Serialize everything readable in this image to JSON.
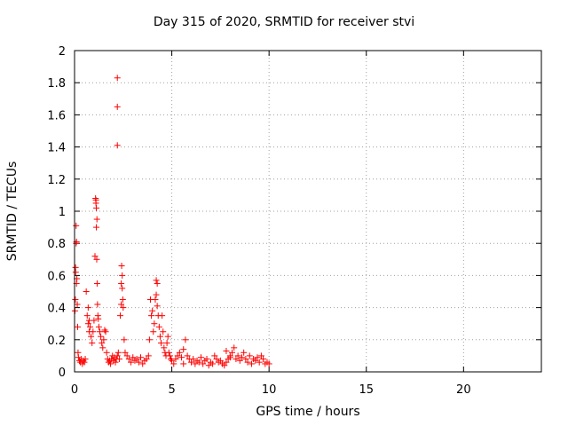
{
  "chart_data": {
    "type": "scatter",
    "title": "Day 315 of 2020, SRMTID for receiver stvi",
    "xlabel": "GPS time / hours",
    "ylabel": "SRMTID / TECUs",
    "xlim": [
      0,
      24
    ],
    "ylim": [
      0,
      2
    ],
    "xticks": [
      0,
      5,
      10,
      15,
      20
    ],
    "yticks": [
      0,
      0.2,
      0.4,
      0.6,
      0.8,
      1,
      1.2,
      1.4,
      1.6,
      1.8,
      2
    ],
    "grid": true,
    "marker": "+",
    "color": "#ff0000",
    "series": [
      {
        "name": "SRMTID",
        "x": [
          0.02,
          0.04,
          0.06,
          0.08,
          0.1,
          0.12,
          0.14,
          0.16,
          0.18,
          0.2,
          0.25,
          0.3,
          0.35,
          0.4,
          0.45,
          0.5,
          0.55,
          0.6,
          0.65,
          0.7,
          0.75,
          0.8,
          0.85,
          0.9,
          0.95,
          1.0,
          1.05,
          1.08,
          1.1,
          1.12,
          1.14,
          1.16,
          1.18,
          1.2,
          1.22,
          1.25,
          1.3,
          1.35,
          1.4,
          1.45,
          1.5,
          1.55,
          1.6,
          1.65,
          1.7,
          1.75,
          1.8,
          1.85,
          1.9,
          1.95,
          2.0,
          2.05,
          2.1,
          2.15,
          2.2,
          2.25,
          2.3,
          2.35,
          2.4,
          2.42,
          2.45,
          2.48,
          2.5,
          2.55,
          2.6,
          2.7,
          2.8,
          2.9,
          3.0,
          3.1,
          3.2,
          3.3,
          3.4,
          3.5,
          3.6,
          3.7,
          3.8,
          3.85,
          3.9,
          3.95,
          4.0,
          4.05,
          4.1,
          4.15,
          4.2,
          4.25,
          4.3,
          4.35,
          4.4,
          4.45,
          4.5,
          4.55,
          4.6,
          4.65,
          4.7,
          4.75,
          4.8,
          4.85,
          4.9,
          4.95,
          5.0,
          5.1,
          5.2,
          5.3,
          5.4,
          5.5,
          5.6,
          5.7,
          5.8,
          5.9,
          6.0,
          6.1,
          6.2,
          6.3,
          6.4,
          6.5,
          6.6,
          6.7,
          6.8,
          6.9,
          7.0,
          7.1,
          7.2,
          7.3,
          7.4,
          7.5,
          7.6,
          7.7,
          7.8,
          7.9,
          8.0,
          8.1,
          8.2,
          8.3,
          8.4,
          8.5,
          8.6,
          8.7,
          8.8,
          8.9,
          9.0,
          9.1,
          9.2,
          9.3,
          9.4,
          9.5,
          9.6,
          9.7,
          9.8,
          9.9,
          10.0,
          2.2,
          2.2,
          2.2,
          0.1,
          0.05,
          0.08,
          1.1,
          1.12,
          1.15,
          2.4,
          2.45,
          4.2,
          4.25,
          0.7,
          0.75,
          5.6,
          7.8,
          8.0
        ],
        "y": [
          0.38,
          0.45,
          0.62,
          0.91,
          0.81,
          0.58,
          0.42,
          0.28,
          0.12,
          0.09,
          0.07,
          0.06,
          0.08,
          0.05,
          0.07,
          0.06,
          0.08,
          0.5,
          0.35,
          0.3,
          0.32,
          0.28,
          0.22,
          0.18,
          0.25,
          0.32,
          0.72,
          1.08,
          1.05,
          0.9,
          0.7,
          0.55,
          0.42,
          0.35,
          0.33,
          0.28,
          0.25,
          0.22,
          0.18,
          0.15,
          0.2,
          0.26,
          0.25,
          0.12,
          0.08,
          0.06,
          0.07,
          0.05,
          0.08,
          0.1,
          0.07,
          0.09,
          0.06,
          0.08,
          0.1,
          0.12,
          0.08,
          0.35,
          0.55,
          0.66,
          0.6,
          0.45,
          0.4,
          0.2,
          0.12,
          0.1,
          0.08,
          0.06,
          0.09,
          0.07,
          0.08,
          0.06,
          0.09,
          0.05,
          0.07,
          0.08,
          0.1,
          0.2,
          0.45,
          0.35,
          0.38,
          0.25,
          0.3,
          0.45,
          0.57,
          0.55,
          0.35,
          0.28,
          0.22,
          0.18,
          0.35,
          0.25,
          0.15,
          0.12,
          0.1,
          0.18,
          0.22,
          0.12,
          0.1,
          0.08,
          0.07,
          0.05,
          0.08,
          0.1,
          0.12,
          0.09,
          0.14,
          0.2,
          0.1,
          0.08,
          0.06,
          0.08,
          0.05,
          0.07,
          0.06,
          0.09,
          0.05,
          0.07,
          0.08,
          0.04,
          0.06,
          0.05,
          0.1,
          0.08,
          0.06,
          0.07,
          0.05,
          0.04,
          0.06,
          0.08,
          0.1,
          0.12,
          0.15,
          0.08,
          0.1,
          0.07,
          0.09,
          0.12,
          0.08,
          0.06,
          0.1,
          0.05,
          0.08,
          0.07,
          0.09,
          0.06,
          0.1,
          0.08,
          0.05,
          0.06,
          0.05,
          1.83,
          1.65,
          1.41,
          0.55,
          0.65,
          0.8,
          1.07,
          1.02,
          0.95,
          0.42,
          0.52,
          0.48,
          0.41,
          0.4,
          0.25,
          0.05,
          0.13,
          0.09
        ]
      }
    ]
  }
}
